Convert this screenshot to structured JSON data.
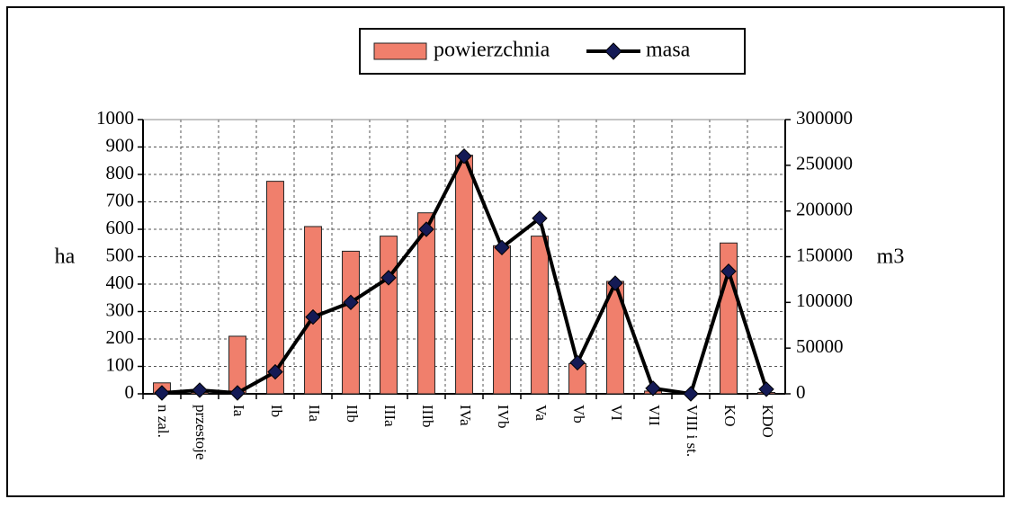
{
  "chart_data": {
    "type": "bar",
    "categories": [
      "n zal.",
      "przestoje",
      "Ia",
      "Ib",
      "IIa",
      "IIb",
      "IIIa",
      "IIIb",
      "IVa",
      "IVb",
      "Va",
      "Vb",
      "VI",
      "VII",
      "VIII i st.",
      "KO",
      "KDO"
    ],
    "series": [
      {
        "name": "powierzchnia",
        "type": "bar",
        "color": "#f07f6c",
        "values": [
          40,
          5,
          210,
          775,
          610,
          520,
          575,
          660,
          870,
          540,
          575,
          110,
          410,
          10,
          0,
          550,
          5
        ]
      },
      {
        "name": "masa",
        "type": "line",
        "axis": "y2",
        "color": "#000000",
        "marker_color": "#141a55",
        "values": [
          1000,
          4000,
          1000,
          24000,
          84000,
          100000,
          127000,
          180000,
          260000,
          160000,
          192000,
          34000,
          121000,
          6000,
          0,
          134000,
          5000
        ]
      }
    ],
    "ylabel": "ha",
    "y2label": "m3",
    "ylim": [
      0,
      1000
    ],
    "yticks": [
      0,
      100,
      200,
      300,
      400,
      500,
      600,
      700,
      800,
      900,
      1000
    ],
    "y2lim": [
      0,
      300000
    ],
    "y2ticks": [
      0,
      50000,
      100000,
      150000,
      200000,
      250000,
      300000
    ],
    "grid": true,
    "legend": "top"
  }
}
